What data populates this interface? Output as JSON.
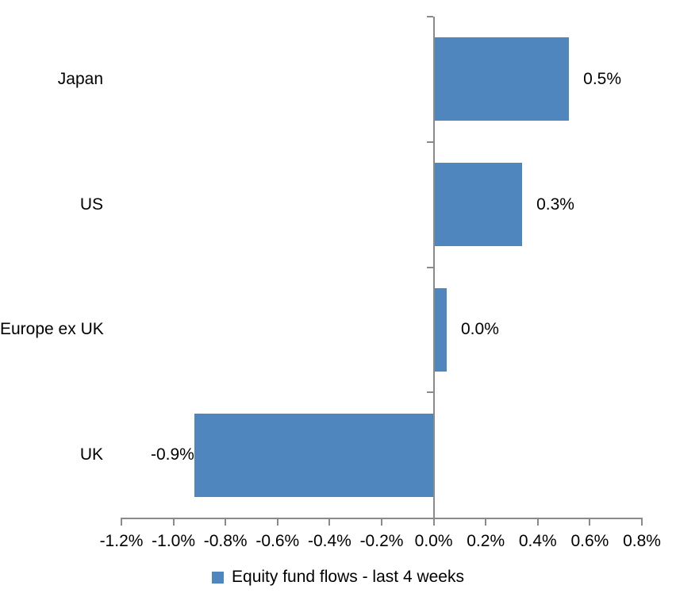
{
  "chart_data": {
    "type": "bar",
    "orientation": "horizontal",
    "title": "",
    "categories": [
      "Japan",
      "US",
      "Europe ex UK",
      "UK"
    ],
    "series": [
      {
        "name": "Equity fund flows - last 4 weeks",
        "values": [
          0.52,
          0.34,
          0.05,
          -0.92
        ],
        "data_labels": [
          "0.5%",
          "0.3%",
          "0.0%",
          "-0.9%"
        ]
      }
    ],
    "x_axis": {
      "min": -1.2,
      "max": 0.8,
      "tick_step": 0.2,
      "tick_values": [
        -1.2,
        -1.0,
        -0.8,
        -0.6,
        -0.4,
        -0.2,
        0.0,
        0.2,
        0.4,
        0.6,
        0.8
      ],
      "tick_labels": [
        "-1.2%",
        "-1.0%",
        "-0.8%",
        "-0.6%",
        "-0.4%",
        "-0.2%",
        "0.0%",
        "0.2%",
        "0.4%",
        "0.6%",
        "0.8%"
      ],
      "format": "percent"
    },
    "grid": false,
    "legend": {
      "position": "bottom",
      "label": "Equity fund flows - last 4 weeks"
    },
    "colors": {
      "bar": "#4E86BD",
      "axis": "#8A8A8A",
      "text": "#000000",
      "background": "#FFFFFF"
    }
  }
}
